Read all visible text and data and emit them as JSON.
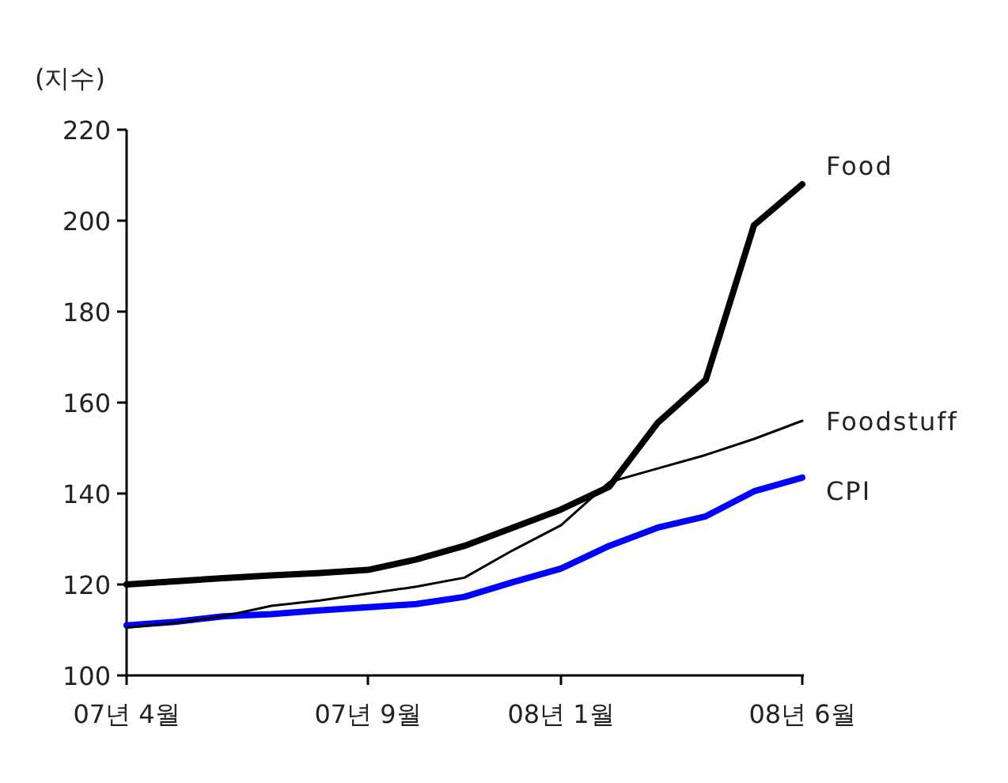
{
  "chart_data": {
    "type": "line",
    "ylabel": "(지수)",
    "categories": [
      "07년 4월",
      null,
      null,
      null,
      null,
      "07년 9월",
      null,
      null,
      null,
      "08년 1월",
      null,
      null,
      null,
      null,
      "08년 6월"
    ],
    "ylim": [
      100,
      220
    ],
    "yticks": [
      100,
      120,
      140,
      160,
      180,
      200,
      220
    ],
    "series": [
      {
        "name": "Food",
        "color": "#000000",
        "values": [
          120,
          120.7,
          121.4,
          122,
          122.5,
          123.2,
          125.5,
          128.5,
          132.5,
          136.5,
          141.5,
          155.5,
          165,
          199,
          208
        ]
      },
      {
        "name": "CPI",
        "color": "#0000ff",
        "values": [
          111,
          111.8,
          113,
          113.5,
          114.3,
          115,
          115.7,
          117.3,
          120.5,
          123.5,
          128.5,
          132.5,
          135,
          140.5,
          143.5
        ]
      },
      {
        "name": "Foodstuff",
        "color": "#000000",
        "values": [
          110.5,
          111.5,
          113,
          115.3,
          116.5,
          118,
          119.5,
          121.5,
          127.5,
          133,
          142.5,
          145.5,
          148.5,
          152,
          156
        ]
      }
    ]
  }
}
